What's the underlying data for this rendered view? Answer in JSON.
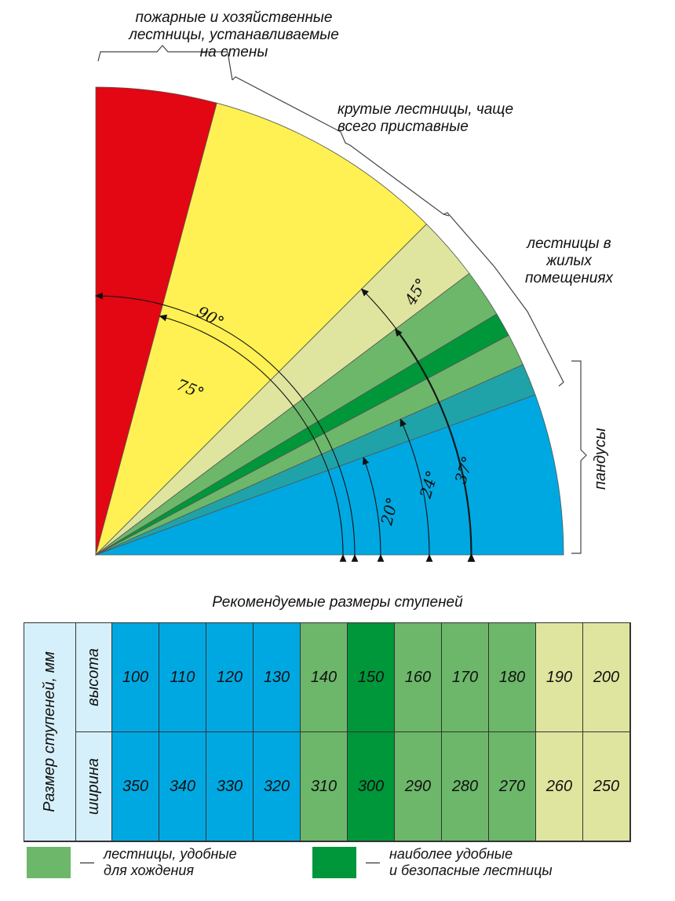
{
  "labels": {
    "fire_ladders": "пожарные и хозяйственные\nлестницы, устанавливаемые\nна стены",
    "steep_stairs": "крутые лестницы, чаще\nвсего приставные",
    "residential_stairs": "лестницы в\nжилых\nпомещениях",
    "ramps": "пандусы"
  },
  "angles": [
    "90°",
    "75°",
    "45°",
    "37°",
    "24°",
    "20°"
  ],
  "sectors": [
    {
      "from": 75,
      "to": 90,
      "color": "#e30613"
    },
    {
      "from": 45,
      "to": 75,
      "color": "#fff153"
    },
    {
      "from": 37,
      "to": 45,
      "color": "#dfe59e"
    },
    {
      "from": 31,
      "to": 37,
      "color": "#6db76a"
    },
    {
      "from": 28,
      "to": 31,
      "color": "#00963a"
    },
    {
      "from": 24,
      "to": 28,
      "color": "#6db76a"
    },
    {
      "from": 20,
      "to": 24,
      "color": "#1fa3a8"
    },
    {
      "from": 0,
      "to": 20,
      "color": "#00a8e2"
    }
  ],
  "table": {
    "title": "Рекомендуемые размеры ступеней",
    "row_header": "Размер ступеней, мм",
    "height_label": "высота",
    "width_label": "ширина",
    "heights": [
      "100",
      "110",
      "120",
      "130",
      "140",
      "150",
      "160",
      "170",
      "180",
      "190",
      "200"
    ],
    "widths": [
      "350",
      "340",
      "330",
      "320",
      "310",
      "300",
      "290",
      "280",
      "270",
      "260",
      "250"
    ],
    "column_colors": [
      "#00a8e2",
      "#00a8e2",
      "#00a8e2",
      "#00a8e2",
      "#6db76a",
      "#00963a",
      "#6db76a",
      "#6db76a",
      "#6db76a",
      "#dfe59e",
      "#dfe59e"
    ],
    "header_color": "#d6f0fb"
  },
  "legend": [
    {
      "color": "#6db76a",
      "text": "лестницы, удобные\nдля хождения"
    },
    {
      "color": "#00963a",
      "text": "наиболее удобные\nи безопасные лестницы"
    }
  ]
}
